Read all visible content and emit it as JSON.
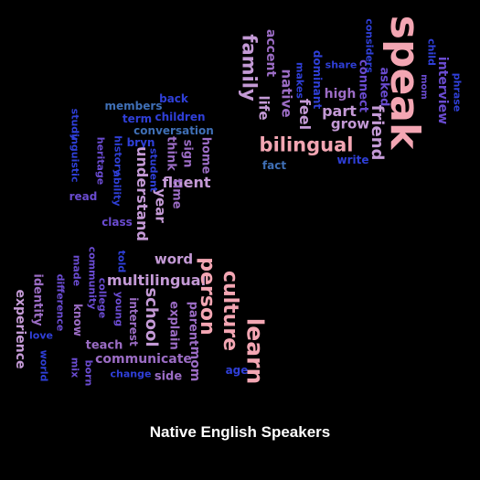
{
  "caption": "Native English Speakers",
  "colors": {
    "background": "#000000",
    "pink": "#f3a6b3",
    "lavender": "#c49ad6",
    "purple": "#9b6cc4",
    "violet": "#6a4bd0",
    "blue": "#2f3fd8",
    "steel": "#3f6fb5",
    "caption": "#ffffff"
  },
  "words": [
    {
      "text": "speak",
      "color": "pink",
      "rotated": true
    },
    {
      "text": "family",
      "color": "lavender",
      "rotated": true
    },
    {
      "text": "accent",
      "color": "purple",
      "rotated": true
    },
    {
      "text": "considers",
      "color": "blue",
      "rotated": true
    },
    {
      "text": "share",
      "color": "blue",
      "rotated": false
    },
    {
      "text": "child",
      "color": "blue",
      "rotated": true
    },
    {
      "text": "mom",
      "color": "violet",
      "rotated": true
    },
    {
      "text": "phrase",
      "color": "blue",
      "rotated": true
    },
    {
      "text": "interview",
      "color": "violet",
      "rotated": true
    },
    {
      "text": "makes",
      "color": "blue",
      "rotated": true
    },
    {
      "text": "dominant",
      "color": "blue",
      "rotated": true
    },
    {
      "text": "native",
      "color": "purple",
      "rotated": true
    },
    {
      "text": "life",
      "color": "lavender",
      "rotated": true
    },
    {
      "text": "feel",
      "color": "lavender",
      "rotated": true
    },
    {
      "text": "high",
      "color": "purple",
      "rotated": false
    },
    {
      "text": "connect",
      "color": "violet",
      "rotated": true
    },
    {
      "text": "asked",
      "color": "violet",
      "rotated": true
    },
    {
      "text": "part",
      "color": "lavender",
      "rotated": false
    },
    {
      "text": "grow",
      "color": "lavender",
      "rotated": false
    },
    {
      "text": "friend",
      "color": "lavender",
      "rotated": true
    },
    {
      "text": "bilingual",
      "color": "pink",
      "rotated": false
    },
    {
      "text": "fact",
      "color": "steel",
      "rotated": false
    },
    {
      "text": "write",
      "color": "blue",
      "rotated": false
    },
    {
      "text": "back",
      "color": "blue",
      "rotated": false
    },
    {
      "text": "members",
      "color": "steel",
      "rotated": false
    },
    {
      "text": "children",
      "color": "blue",
      "rotated": false
    },
    {
      "text": "term",
      "color": "blue",
      "rotated": false
    },
    {
      "text": "conversation",
      "color": "steel",
      "rotated": false
    },
    {
      "text": "study",
      "color": "blue",
      "rotated": true
    },
    {
      "text": "bryn",
      "color": "blue",
      "rotated": false
    },
    {
      "text": "heritage",
      "color": "violet",
      "rotated": true
    },
    {
      "text": "history",
      "color": "blue",
      "rotated": true
    },
    {
      "text": "think",
      "color": "purple",
      "rotated": true
    },
    {
      "text": "sign",
      "color": "purple",
      "rotated": true
    },
    {
      "text": "home",
      "color": "purple",
      "rotated": true
    },
    {
      "text": "linguistic",
      "color": "blue",
      "rotated": true
    },
    {
      "text": "student",
      "color": "blue",
      "rotated": true
    },
    {
      "text": "ability",
      "color": "blue",
      "rotated": true
    },
    {
      "text": "fluent",
      "color": "lavender",
      "rotated": false
    },
    {
      "text": "read",
      "color": "violet",
      "rotated": false
    },
    {
      "text": "understand",
      "color": "lavender",
      "rotated": true
    },
    {
      "text": "year",
      "color": "lavender",
      "rotated": true
    },
    {
      "text": "time",
      "color": "purple",
      "rotated": true
    },
    {
      "text": "class",
      "color": "violet",
      "rotated": false
    },
    {
      "text": "word",
      "color": "lavender",
      "rotated": false
    },
    {
      "text": "made",
      "color": "violet",
      "rotated": true
    },
    {
      "text": "community",
      "color": "violet",
      "rotated": true
    },
    {
      "text": "told",
      "color": "blue",
      "rotated": true
    },
    {
      "text": "multilingual",
      "color": "lavender",
      "rotated": false
    },
    {
      "text": "person",
      "color": "pink",
      "rotated": true
    },
    {
      "text": "culture",
      "color": "pink",
      "rotated": true
    },
    {
      "text": "identity",
      "color": "purple",
      "rotated": true
    },
    {
      "text": "difference",
      "color": "violet",
      "rotated": true
    },
    {
      "text": "college",
      "color": "violet",
      "rotated": true
    },
    {
      "text": "school",
      "color": "lavender",
      "rotated": true
    },
    {
      "text": "explain",
      "color": "purple",
      "rotated": true
    },
    {
      "text": "parent",
      "color": "purple",
      "rotated": true
    },
    {
      "text": "experience",
      "color": "lavender",
      "rotated": true
    },
    {
      "text": "know",
      "color": "purple",
      "rotated": true
    },
    {
      "text": "young",
      "color": "violet",
      "rotated": true
    },
    {
      "text": "interest",
      "color": "purple",
      "rotated": true
    },
    {
      "text": "teach",
      "color": "purple",
      "rotated": false
    },
    {
      "text": "love",
      "color": "blue",
      "rotated": false
    },
    {
      "text": "communicate",
      "color": "purple",
      "rotated": false
    },
    {
      "text": "world",
      "color": "blue",
      "rotated": true
    },
    {
      "text": "mix",
      "color": "violet",
      "rotated": true
    },
    {
      "text": "born",
      "color": "violet",
      "rotated": true
    },
    {
      "text": "change",
      "color": "blue",
      "rotated": false
    },
    {
      "text": "side",
      "color": "purple",
      "rotated": false
    },
    {
      "text": "mom",
      "color": "purple",
      "rotated": true
    },
    {
      "text": "age",
      "color": "blue",
      "rotated": false
    },
    {
      "text": "learn",
      "color": "pink",
      "rotated": true
    }
  ]
}
